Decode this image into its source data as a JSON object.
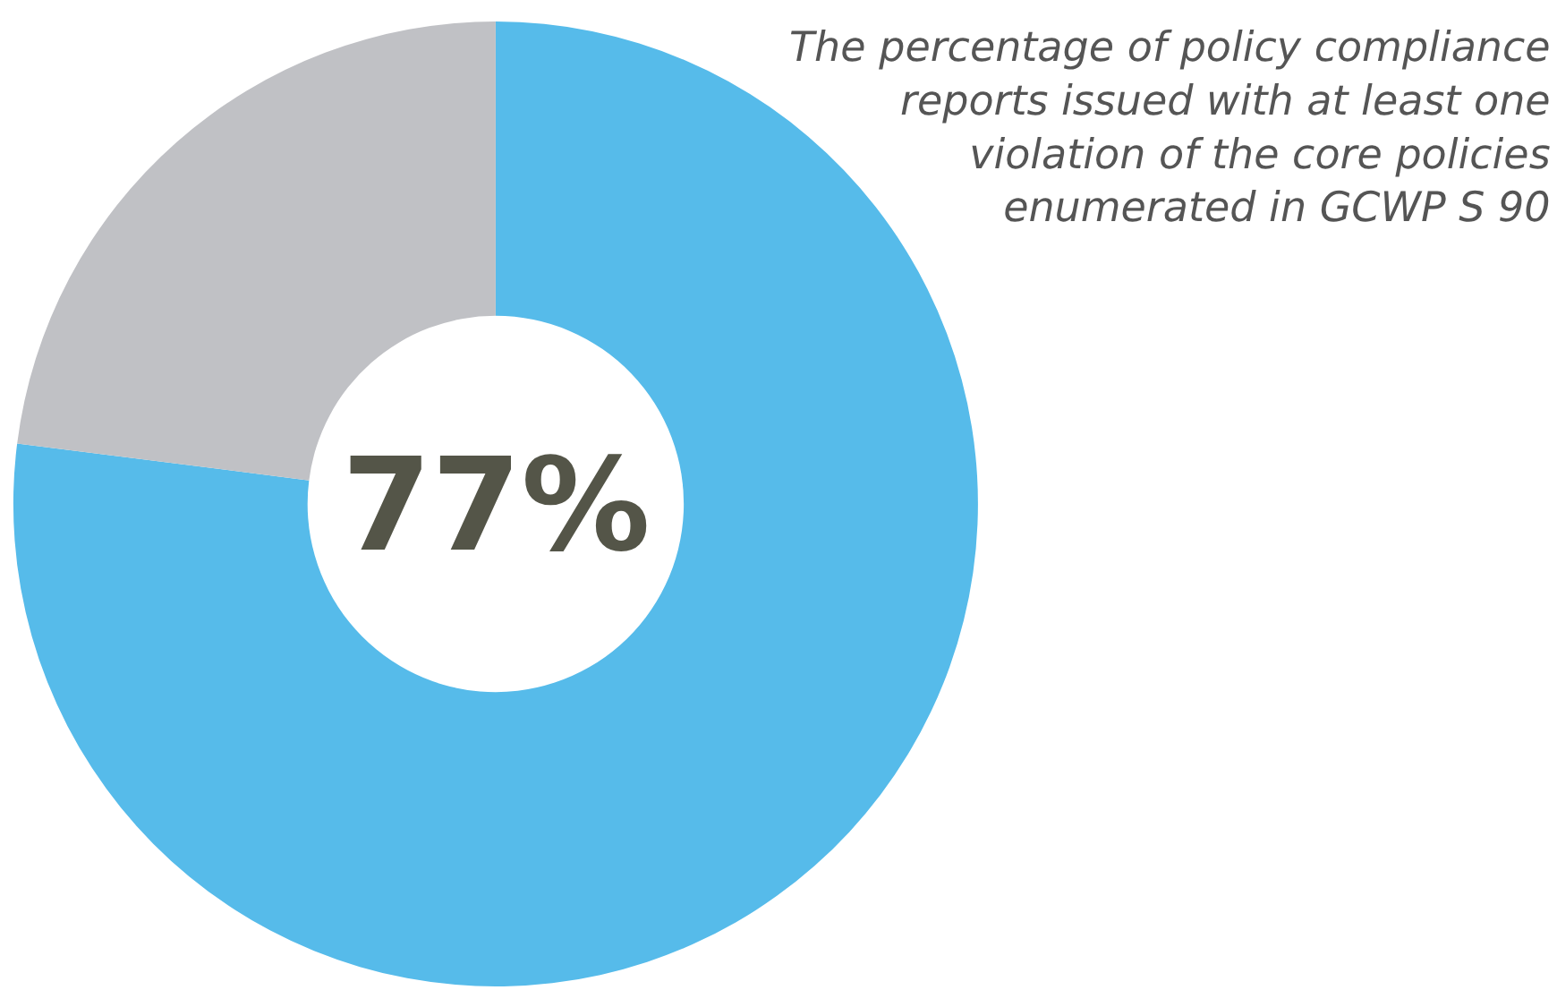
{
  "chart_data": {
    "type": "donut",
    "title": "The percentage of policy compliance\nreports issued with at least one\nviolation of the core policies\nenumerated in GCWP S 90",
    "categories": [
      null,
      null
    ],
    "values": [
      77,
      23
    ],
    "colors": [
      "#56bbea",
      "#c0c1c5"
    ],
    "annotations": [
      "77%"
    ],
    "legend": false
  }
}
